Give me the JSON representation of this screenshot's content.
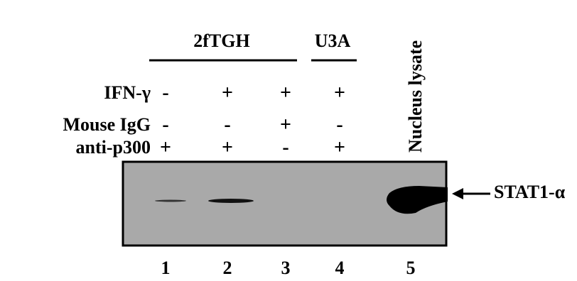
{
  "groups": [
    {
      "label": "2fTGH"
    },
    {
      "label": "U3A"
    }
  ],
  "side_label": "Nucleus lysate",
  "rows": [
    {
      "label": "IFN-γ",
      "cells": [
        "-",
        "+",
        "+",
        "+"
      ]
    },
    {
      "label": "Mouse IgG",
      "cells": [
        "-",
        "-",
        "+",
        "-"
      ]
    },
    {
      "label": "anti-p300",
      "cells": [
        "+",
        "+",
        "-",
        "+"
      ]
    }
  ],
  "band_label": "STAT1-α",
  "lanes": [
    "1",
    "2",
    "3",
    "4",
    "5"
  ]
}
